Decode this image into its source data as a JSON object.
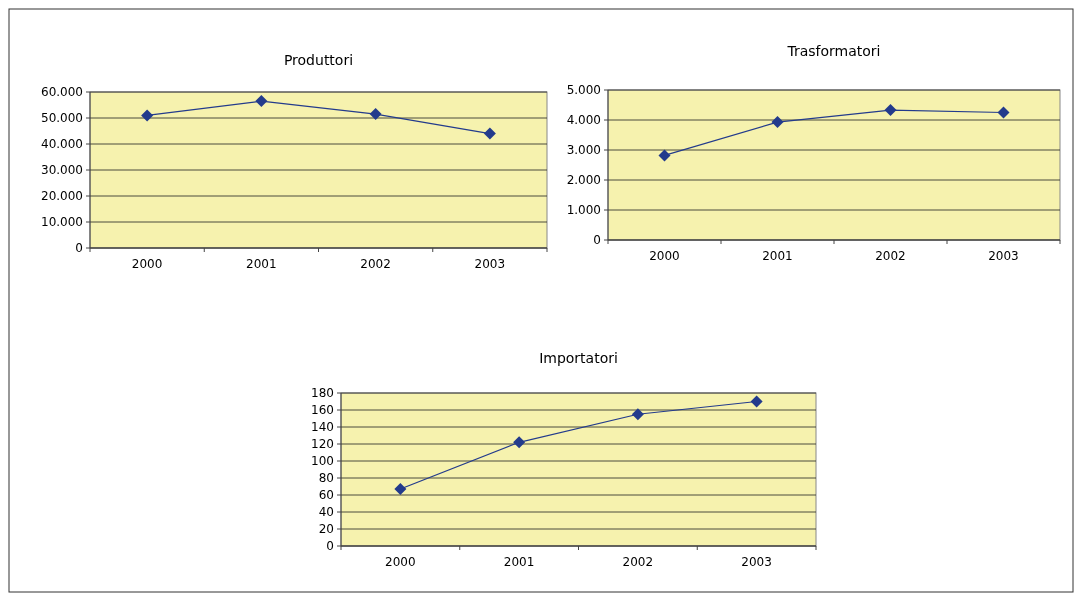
{
  "chart_data": [
    {
      "type": "line",
      "title": "Produttori",
      "categories": [
        "2000",
        "2001",
        "2002",
        "2003"
      ],
      "series": [
        {
          "color": "#233b8c",
          "values": [
            51000,
            56500,
            51500,
            44000
          ]
        }
      ],
      "ylim": [
        0,
        60000
      ],
      "yticks": [
        {
          "value": 0,
          "label": "0"
        },
        {
          "value": 10000,
          "label": "10.000"
        },
        {
          "value": 20000,
          "label": "20.000"
        },
        {
          "value": 30000,
          "label": "30.000"
        },
        {
          "value": 40000,
          "label": "40.000"
        },
        {
          "value": 50000,
          "label": "50.000"
        },
        {
          "value": 60000,
          "label": "60.000"
        }
      ],
      "grid": "y",
      "marker": "diamond"
    },
    {
      "type": "line",
      "title": "Trasformatori",
      "categories": [
        "2000",
        "2001",
        "2002",
        "2003"
      ],
      "series": [
        {
          "color": "#233b8c",
          "values": [
            2820,
            3930,
            4330,
            4250
          ]
        }
      ],
      "ylim": [
        0,
        5000
      ],
      "yticks": [
        {
          "value": 0,
          "label": "0"
        },
        {
          "value": 1000,
          "label": "1.000"
        },
        {
          "value": 2000,
          "label": "2.000"
        },
        {
          "value": 3000,
          "label": "3.000"
        },
        {
          "value": 4000,
          "label": "4.000"
        },
        {
          "value": 5000,
          "label": "5.000"
        }
      ],
      "grid": "y",
      "marker": "diamond"
    },
    {
      "type": "line",
      "title": "Importatori",
      "categories": [
        "2000",
        "2001",
        "2002",
        "2003"
      ],
      "series": [
        {
          "color": "#233b8c",
          "values": [
            67,
            122,
            155,
            170
          ]
        }
      ],
      "ylim": [
        0,
        180
      ],
      "yticks": [
        0,
        20,
        40,
        60,
        80,
        100,
        120,
        140,
        160,
        180
      ],
      "grid": "y",
      "marker": "diamond"
    }
  ]
}
